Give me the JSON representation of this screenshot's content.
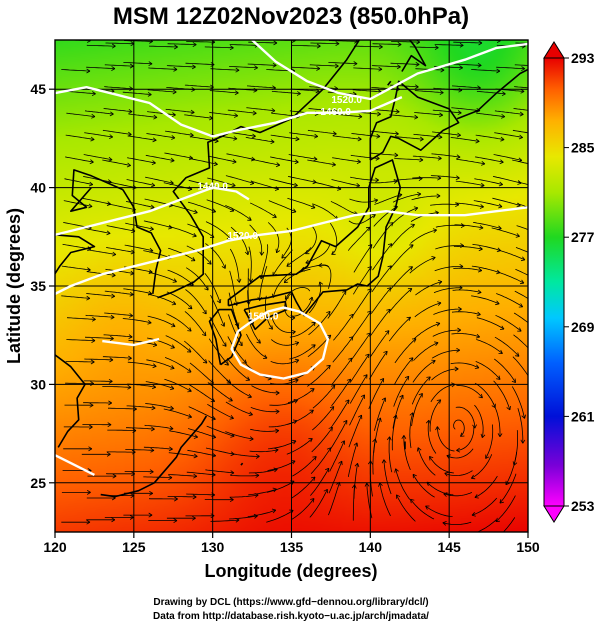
{
  "chart_data": {
    "type": "heatmap",
    "title": "MSM 12Z02Nov2023 (850.0hPa)",
    "xlabel": "Longitude (degrees)",
    "ylabel": "Latitude  (degrees)",
    "xlim": [
      120,
      150
    ],
    "ylim": [
      22.5,
      47.5
    ],
    "xticks": [
      120,
      125,
      130,
      135,
      140,
      145,
      150
    ],
    "yticks": [
      25,
      30,
      35,
      40,
      45
    ],
    "colorbar": {
      "range": [
        253,
        293
      ],
      "ticks": [
        293,
        285,
        277,
        269,
        261,
        253
      ],
      "colors": [
        "#ff00ff",
        "#7a00d8",
        "#0010d8",
        "#0060ff",
        "#00c8ff",
        "#00e8a0",
        "#20d820",
        "#a8e800",
        "#e8e800",
        "#ffb000",
        "#ff6000",
        "#e80000"
      ]
    },
    "contour_labels": [
      {
        "text": "1520.0",
        "lon": 138.5,
        "lat": 44.3
      },
      {
        "text": "1460.0",
        "lon": 137.8,
        "lat": 43.7
      },
      {
        "text": "1440.0",
        "lon": 130.0,
        "lat": 39.9
      },
      {
        "text": "1520.0",
        "lon": 131.9,
        "lat": 37.4
      },
      {
        "text": "1560.0",
        "lon": 133.2,
        "lat": 33.3
      }
    ],
    "contours": [
      [
        [
          132.5,
          47.5
        ],
        [
          134,
          46.4
        ],
        [
          136,
          45.4
        ],
        [
          138,
          44.8
        ],
        [
          140,
          44.5
        ],
        [
          143,
          45.8
        ],
        [
          146,
          46.5
        ],
        [
          148,
          47.1
        ],
        [
          150,
          47.3
        ]
      ],
      [
        [
          120,
          44.8
        ],
        [
          122,
          45.1
        ],
        [
          124,
          44.7
        ],
        [
          126,
          44.3
        ],
        [
          128,
          43.2
        ],
        [
          130,
          42.6
        ],
        [
          131.5,
          42.9
        ],
        [
          134,
          43.3
        ],
        [
          136,
          43.8
        ],
        [
          138,
          43.8
        ],
        [
          140,
          43.9
        ],
        [
          142,
          44.6
        ]
      ],
      [
        [
          120,
          37.6
        ],
        [
          122,
          38.0
        ],
        [
          124,
          38.4
        ],
        [
          126,
          38.8
        ],
        [
          128,
          39.4
        ],
        [
          130,
          40.0
        ],
        [
          131.5,
          39.8
        ],
        [
          132.3,
          39.4
        ]
      ],
      [
        [
          120,
          34.6
        ],
        [
          121,
          35.0
        ],
        [
          123,
          35.6
        ],
        [
          125,
          36.0
        ],
        [
          127,
          36.4
        ],
        [
          129,
          36.8
        ],
        [
          131,
          37.3
        ],
        [
          133,
          37.6
        ],
        [
          135,
          37.8
        ],
        [
          137,
          38.2
        ],
        [
          139,
          38.6
        ],
        [
          141,
          38.8
        ],
        [
          143,
          38.6
        ],
        [
          146,
          38.6
        ],
        [
          148,
          38.8
        ],
        [
          150,
          39.0
        ]
      ],
      [
        [
          123,
          32.2
        ],
        [
          125,
          32.0
        ],
        [
          126.6,
          32.3
        ]
      ],
      [
        [
          131.6,
          32.7
        ],
        [
          132.3,
          33.1
        ],
        [
          133.5,
          33.7
        ],
        [
          134.5,
          33.9
        ],
        [
          135.5,
          33.7
        ],
        [
          136.8,
          33.1
        ],
        [
          137.3,
          32.3
        ],
        [
          137.0,
          31.3
        ],
        [
          136.0,
          30.6
        ],
        [
          134.5,
          30.3
        ],
        [
          133.0,
          30.5
        ],
        [
          131.8,
          31.0
        ],
        [
          131.2,
          31.8
        ],
        [
          131.6,
          32.7
        ]
      ],
      [
        [
          120,
          26.4
        ],
        [
          121,
          26.0
        ],
        [
          122.5,
          25.4
        ]
      ]
    ],
    "lows": [
      {
        "lon": 140.2,
        "lat": 36.5
      },
      {
        "lon": 138.5,
        "lat": 33.8
      },
      {
        "lon": 134.8,
        "lat": 32.3
      }
    ],
    "highs": [
      {
        "lon": 145.5,
        "lat": 29.3
      }
    ]
  },
  "credits": {
    "line1": "Drawing by DCL (https://www.gfd−dennou.org/library/dcl/)",
    "line2": "Data from http://database.rish.kyoto−u.ac.jp/arch/jmadata/"
  }
}
